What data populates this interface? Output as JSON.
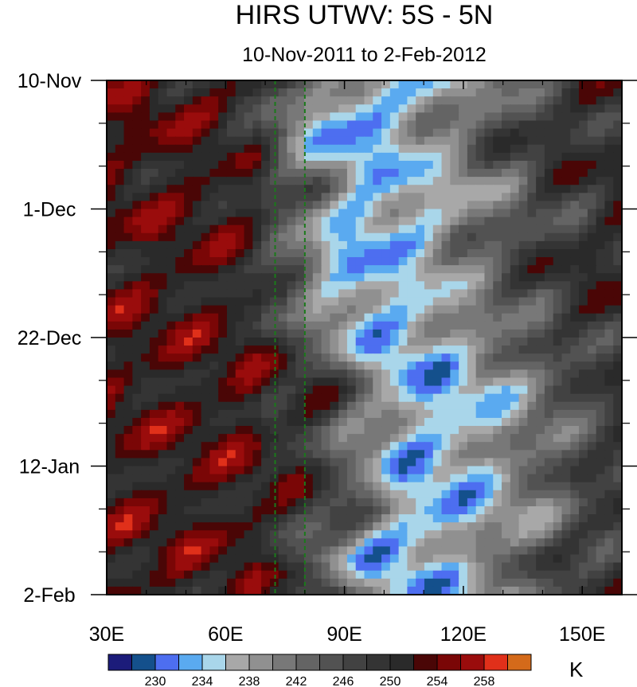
{
  "chart_data": {
    "type": "heatmap",
    "title": "HIRS UTWV: 5S - 5N",
    "subtitle": "10-Nov-2011 to 2-Feb-2012",
    "xlabel": "",
    "ylabel": "",
    "x_range": [
      30,
      160
    ],
    "y_range": [
      "10-Nov-2011",
      "2-Feb-2012"
    ],
    "x_ticks": [
      {
        "value": 30,
        "label": "30E"
      },
      {
        "value": 60,
        "label": "60E"
      },
      {
        "value": 90,
        "label": "90E"
      },
      {
        "value": 120,
        "label": "120E"
      },
      {
        "value": 150,
        "label": "150E"
      }
    ],
    "y_ticks": [
      {
        "value": 0,
        "label": "10-Nov"
      },
      {
        "value": 21,
        "label": "1-Dec"
      },
      {
        "value": 42,
        "label": "22-Dec"
      },
      {
        "value": 63,
        "label": "12-Jan"
      },
      {
        "value": 84,
        "label": "2-Feb"
      }
    ],
    "reference_lines_x": [
      72.5,
      80
    ],
    "colorbar": {
      "units": "K",
      "levels": [
        228,
        230,
        232,
        234,
        236,
        238,
        240,
        242,
        244,
        246,
        248,
        250,
        252,
        254,
        256,
        258
      ],
      "labels": [
        230,
        234,
        238,
        242,
        246,
        250,
        254,
        258
      ],
      "colors": [
        "#1c1c7a",
        "#14508c",
        "#4d6ef0",
        "#5aaaf0",
        "#a9d6ea",
        "#a8a8a8",
        "#909090",
        "#787878",
        "#646464",
        "#525252",
        "#424242",
        "#343434",
        "#2a2a2a",
        "#4a0606",
        "#7a0606",
        "#9a0c0c",
        "#e0301a",
        "#d46a1a"
      ]
    },
    "field_description": "Temperature field for 5S-5N; lowest values (~228-238 K, blue) in a band starting near 80E and shifting east to ~140E over time; highest values (~250-258 K, black/dark red) west of 70E.",
    "band_axis": [
      {
        "day": 0,
        "lon": 100
      },
      {
        "day": 10,
        "lon": 88
      },
      {
        "day": 18,
        "lon": 100
      },
      {
        "day": 30,
        "lon": 92
      },
      {
        "day": 42,
        "lon": 100
      },
      {
        "day": 50,
        "lon": 112
      },
      {
        "day": 60,
        "lon": 108
      },
      {
        "day": 70,
        "lon": 112
      },
      {
        "day": 78,
        "lon": 100
      },
      {
        "day": 84,
        "lon": 108
      }
    ]
  }
}
